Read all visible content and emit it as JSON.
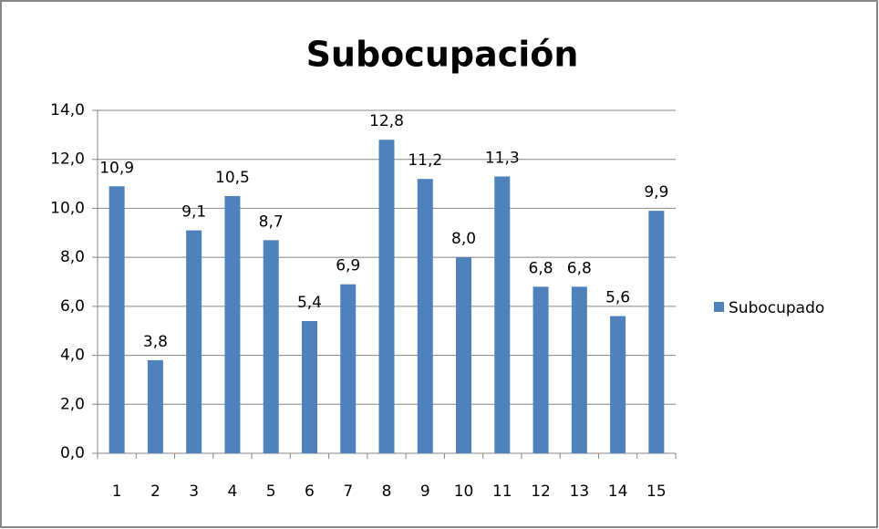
{
  "chart_data": {
    "type": "bar",
    "title": "Subocupación",
    "categories": [
      "1",
      "2",
      "3",
      "4",
      "5",
      "6",
      "7",
      "8",
      "9",
      "10",
      "11",
      "12",
      "13",
      "14",
      "15"
    ],
    "series": [
      {
        "name": "Subocupado",
        "color": "#4f81bd",
        "values": [
          10.9,
          3.8,
          9.1,
          10.5,
          8.7,
          5.4,
          6.9,
          12.8,
          11.2,
          8.0,
          11.3,
          6.8,
          6.8,
          5.6,
          9.9
        ],
        "value_labels": [
          "10,9",
          "3,8",
          "9,1",
          "10,5",
          "8,7",
          "5,4",
          "6,9",
          "12,8",
          "11,2",
          "8,0",
          "11,3",
          "6,8",
          "6,8",
          "5,6",
          "9,9"
        ]
      }
    ],
    "ylim": [
      0,
      14
    ],
    "yticks": [
      {
        "value": 0,
        "label": "0,0"
      },
      {
        "value": 2,
        "label": "2,0"
      },
      {
        "value": 4,
        "label": "4,0"
      },
      {
        "value": 6,
        "label": "6,0"
      },
      {
        "value": 8,
        "label": "8,0"
      },
      {
        "value": 10,
        "label": "10,0"
      },
      {
        "value": 12,
        "label": "12,0"
      },
      {
        "value": 14,
        "label": "14,0"
      }
    ],
    "grid": true,
    "legend": "right"
  }
}
